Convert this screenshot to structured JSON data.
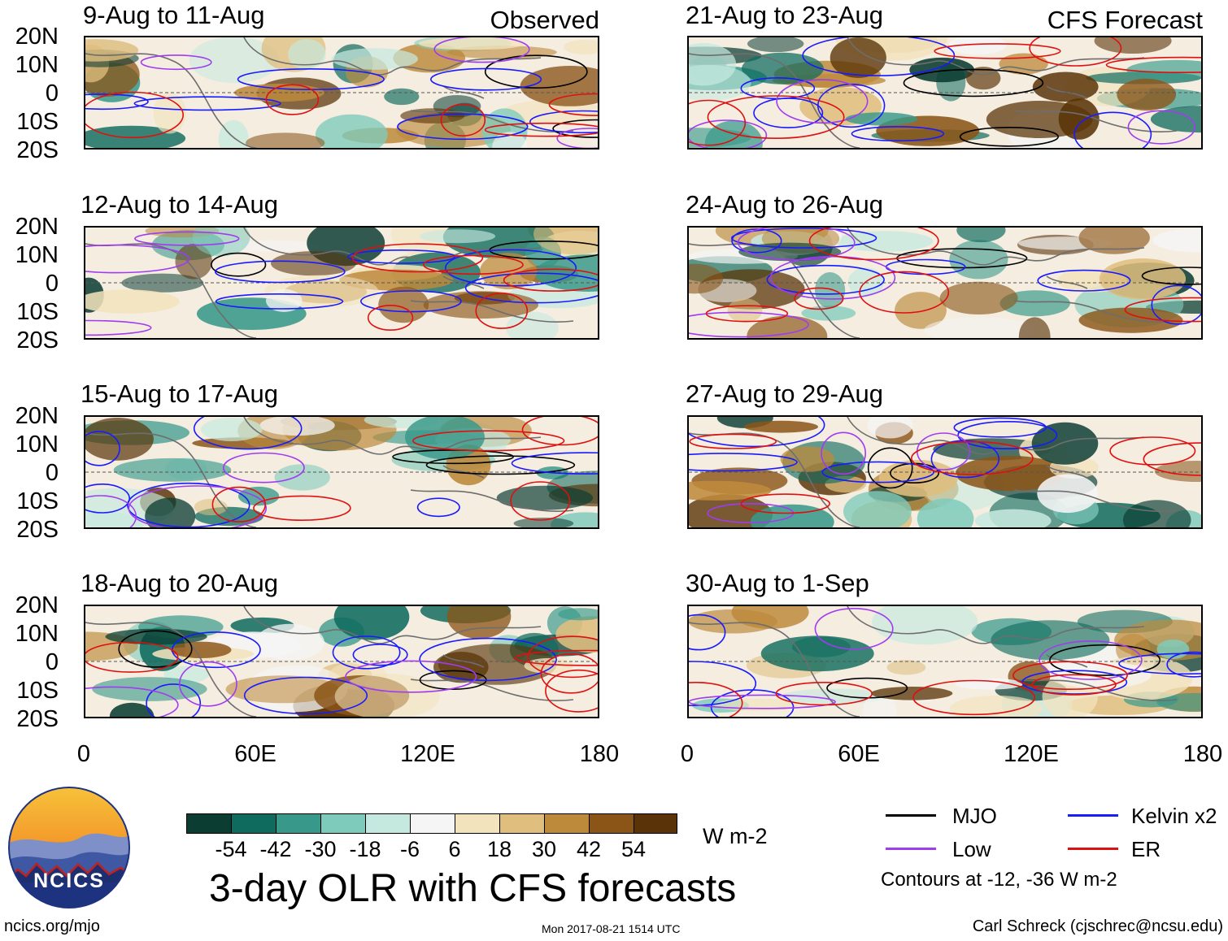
{
  "chart_data": {
    "type": "heatmap",
    "title": "3-day OLR with CFS forecasts",
    "variable": "OLR anomaly",
    "units": "W m-2",
    "observed_label": "Observed",
    "forecast_label": "CFS Forecast",
    "lat_ticks": [
      "20N",
      "10N",
      "0",
      "10S",
      "20S"
    ],
    "lat_range": [
      -20,
      20
    ],
    "lon_ticks": [
      "0",
      "60E",
      "120E",
      "180"
    ],
    "lon_range": [
      0,
      180
    ],
    "panels": [
      {
        "period": "9-Aug to 11-Aug",
        "kind": "observed"
      },
      {
        "period": "12-Aug to 14-Aug",
        "kind": "observed"
      },
      {
        "period": "15-Aug to 17-Aug",
        "kind": "observed"
      },
      {
        "period": "18-Aug to 20-Aug",
        "kind": "observed"
      },
      {
        "period": "21-Aug to 23-Aug",
        "kind": "forecast"
      },
      {
        "period": "24-Aug to 26-Aug",
        "kind": "forecast"
      },
      {
        "period": "27-Aug to 29-Aug",
        "kind": "forecast"
      },
      {
        "period": "30-Aug to 1-Sep",
        "kind": "forecast"
      }
    ],
    "colorbar": {
      "labels": [
        "-54",
        "-42",
        "-30",
        "-18",
        "-6",
        "6",
        "18",
        "30",
        "42",
        "54"
      ],
      "colors": [
        "#0b3d33",
        "#0f6b5e",
        "#38998a",
        "#7fcbbb",
        "#c6e9df",
        "#f5f5f5",
        "#f3e3bd",
        "#dfbe7e",
        "#bd8a3c",
        "#8b5518",
        "#5a3408"
      ],
      "units": "W m-2"
    },
    "legend": [
      {
        "label": "MJO",
        "color": "#000000"
      },
      {
        "label": "Kelvin x2",
        "color": "#1a1aff"
      },
      {
        "label": "Low",
        "color": "#a03cf0"
      },
      {
        "label": "ER",
        "color": "#e01010"
      }
    ],
    "contour_note": "Contours at -12, -36 W m-2"
  },
  "footer": {
    "logo_text": "NCICS",
    "site": "ncics.org/mjo",
    "timestamp": "Mon 2017-08-21 1514 UTC",
    "credit": "Carl Schreck (cjschrec@ncsu.edu)"
  }
}
